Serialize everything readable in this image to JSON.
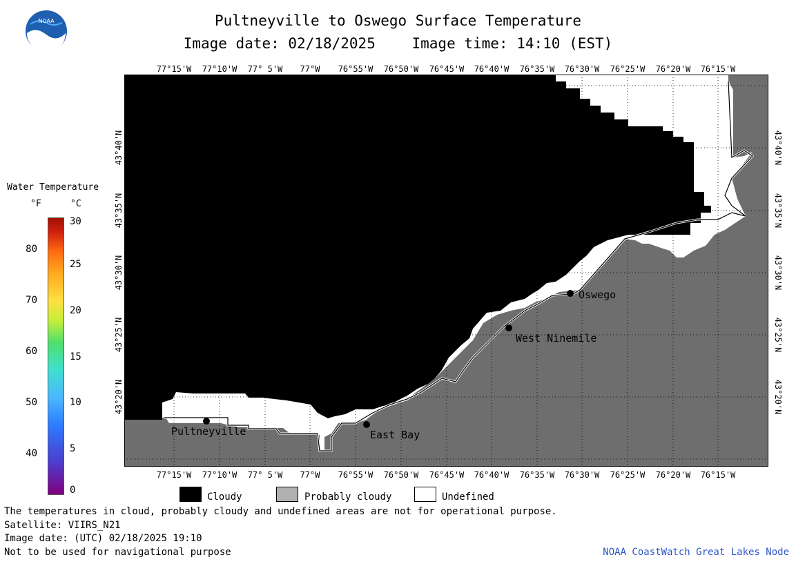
{
  "header": {
    "title": "Pultneyville to Oswego Surface Temperature",
    "image_date": "Image date: 02/18/2025",
    "image_time": "Image time: 14:10 (EST)"
  },
  "logo": {
    "text": "NOAA"
  },
  "map": {
    "lon_labels": [
      "77°15'W",
      "77°10'W",
      "77° 5'W",
      "77°W",
      "76°55'W",
      "76°50'W",
      "76°45'W",
      "76°40'W",
      "76°35'W",
      "76°30'W",
      "76°25'W",
      "76°20'W",
      "76°15'W"
    ],
    "lat_labels": [
      "43°40'N",
      "43°35'N",
      "43°30'N",
      "43°25'N",
      "43°20'N"
    ],
    "places": [
      "Oswego",
      "West Ninemile",
      "Pultneyville",
      "East Bay"
    ],
    "colors": {
      "cloudy": "#000000",
      "probably_cloudy": "#6e6e6e",
      "undefined": "#ffffff"
    }
  },
  "legend": {
    "title": "Water Temperature",
    "unit_f": "°F",
    "unit_c": "°C",
    "f_ticks": [
      "80",
      "70",
      "60",
      "50",
      "40"
    ],
    "c_ticks": [
      "30",
      "25",
      "20",
      "15",
      "10",
      "5",
      "0"
    ]
  },
  "key": {
    "cloudy": "Cloudy",
    "probably_cloudy": "Probably cloudy",
    "undefined": "Undefined"
  },
  "footer": {
    "line1": "The temperatures in cloud, probably cloudy and undefined areas are not for operational purpose.",
    "line2": "Satellite: VIIRS_N21",
    "line3": "Image date: (UTC) 02/18/2025  19:10",
    "line4": "Not to be used for navigational purpose",
    "credit": "NOAA CoastWatch Great Lakes Node"
  }
}
